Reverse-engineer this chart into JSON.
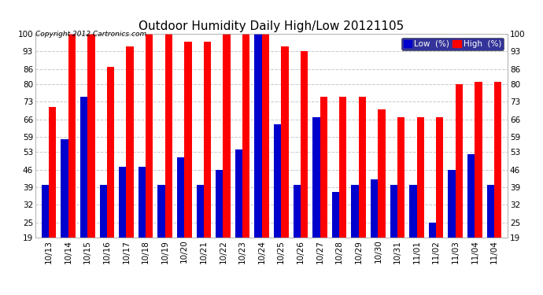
{
  "title": "Outdoor Humidity Daily High/Low 20121105",
  "copyright": "Copyright 2012 Cartronics.com",
  "categories": [
    "10/13",
    "10/14",
    "10/15",
    "10/16",
    "10/17",
    "10/18",
    "10/19",
    "10/20",
    "10/21",
    "10/22",
    "10/23",
    "10/24",
    "10/25",
    "10/26",
    "10/27",
    "10/28",
    "10/29",
    "10/30",
    "10/31",
    "11/01",
    "11/02",
    "11/03",
    "11/04",
    "11/04"
  ],
  "high_vals": [
    71,
    100,
    100,
    87,
    95,
    100,
    100,
    97,
    97,
    100,
    100,
    100,
    95,
    93,
    75,
    75,
    75,
    70,
    67,
    67,
    67,
    80,
    81,
    81
  ],
  "low_vals": [
    40,
    58,
    75,
    40,
    47,
    47,
    40,
    51,
    40,
    46,
    54,
    100,
    64,
    40,
    67,
    37,
    40,
    42,
    40,
    40,
    25,
    46,
    52,
    40
  ],
  "bg_color": "#ffffff",
  "plot_bg_color": "#ffffff",
  "high_color": "#ff0000",
  "low_color": "#0000cc",
  "grid_color": "#c8c8c8",
  "ylim_min": 19,
  "ylim_max": 100,
  "yticks": [
    19,
    25,
    32,
    39,
    46,
    53,
    59,
    66,
    73,
    80,
    86,
    93,
    100
  ],
  "title_fontsize": 11,
  "tick_fontsize": 7.5,
  "copyright_fontsize": 6.5,
  "legend_fontsize": 7.5,
  "bar_width": 0.38
}
